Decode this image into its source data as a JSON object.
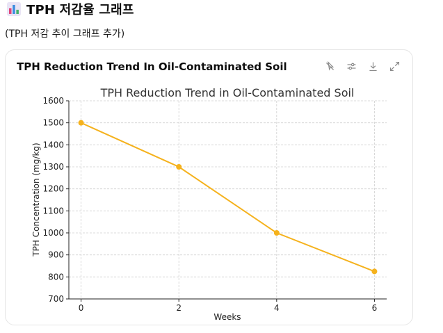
{
  "heading": {
    "emoji": "bar-chart-emoji",
    "text": "TPH 저감율 그래프"
  },
  "subtext": "(TPH 저감 추이 그래프 추가)",
  "card": {
    "title": "TPH Reduction Trend In Oil-Contaminated Soil",
    "toolbar": [
      {
        "name": "interactive-toggle-icon",
        "label": ""
      },
      {
        "name": "customize-icon",
        "label": ""
      },
      {
        "name": "download-icon",
        "label": ""
      },
      {
        "name": "expand-icon",
        "label": ""
      }
    ]
  },
  "colors": {
    "line": "#f5b21d",
    "grid": "#cfcfcf",
    "axis": "#222222"
  },
  "chart_data": {
    "type": "line",
    "title": "TPH Reduction Trend in Oil-Contaminated Soil",
    "xlabel": "Weeks",
    "ylabel": "TPH Concentration (mg/kg)",
    "x": [
      0,
      2,
      4,
      6
    ],
    "series": [
      {
        "name": "",
        "values": [
          1500,
          1300,
          1000,
          825
        ]
      }
    ],
    "xticks": [
      "0",
      "2",
      "4",
      "6"
    ],
    "yticks": [
      "700",
      "800",
      "900",
      "1000",
      "1100",
      "1200",
      "1300",
      "1400",
      "1500",
      "1600"
    ],
    "xlim": [
      -0.25,
      6.25
    ],
    "ylim": [
      700,
      1600
    ],
    "grid": true,
    "legend": "none"
  }
}
